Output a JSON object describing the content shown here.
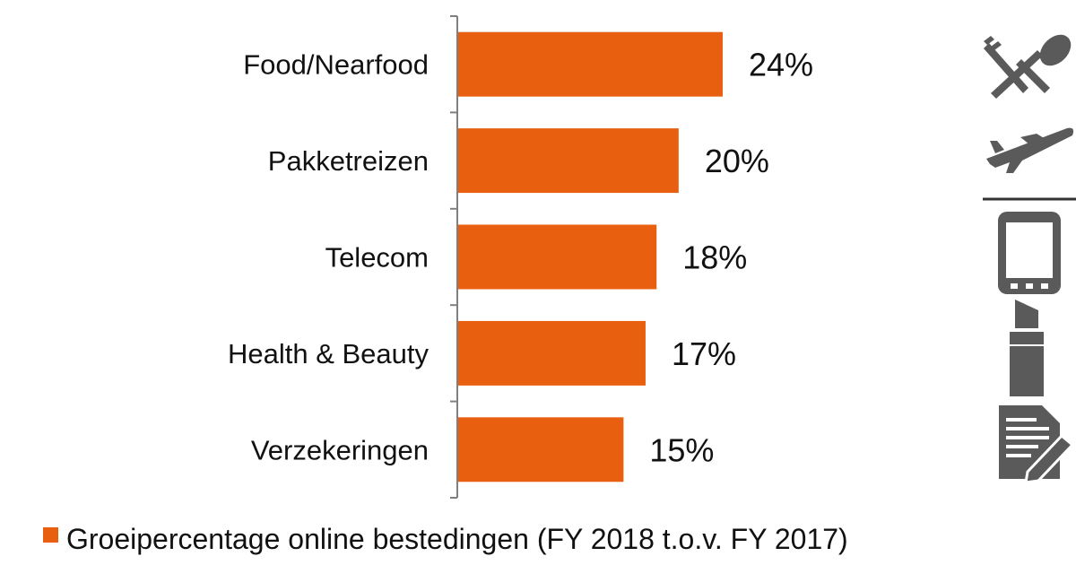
{
  "chart_data": {
    "type": "bar",
    "orientation": "horizontal",
    "categories": [
      "Food/Nearfood",
      "Pakketreizen",
      "Telecom",
      "Health & Beauty",
      "Verzekeringen"
    ],
    "series": [
      {
        "name": "Groeipercentage online bestedingen (FY 2018 t.o.v. FY 2017)",
        "values": [
          24,
          20,
          18,
          17,
          15
        ],
        "color": "#e8600f"
      }
    ],
    "value_labels": [
      "24%",
      "20%",
      "18%",
      "17%",
      "15%"
    ],
    "xlim": [
      0,
      24
    ],
    "grid": false,
    "legend_position": "bottom"
  },
  "icons": [
    "cutlery-icon",
    "airplane-icon",
    "phone-icon",
    "lipstick-icon",
    "document-pen-icon"
  ],
  "colors": {
    "bar": "#e8600f",
    "axis": "#7f7f7f",
    "icon": "#5a5a5a"
  }
}
